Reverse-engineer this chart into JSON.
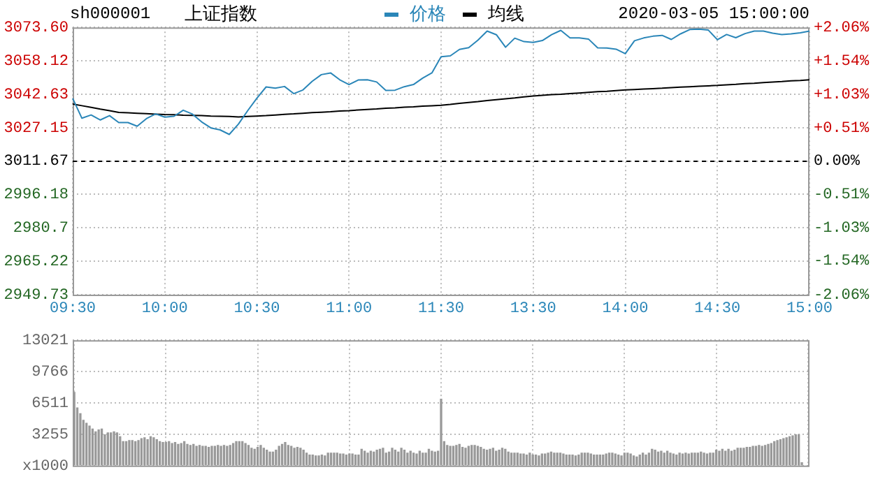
{
  "chart_data": [
    {
      "type": "line",
      "title": "上证指数",
      "subtitle": "sh000001",
      "annotations": [
        "2020-03-05 15:00:00"
      ],
      "legend": "top",
      "grid": true,
      "marker": "none",
      "categories": [
        "09:30",
        null,
        null,
        null,
        null,
        null,
        null,
        null,
        null,
        null,
        "10:00",
        null,
        null,
        null,
        null,
        null,
        null,
        null,
        null,
        null,
        "10:30",
        null,
        null,
        null,
        null,
        null,
        null,
        null,
        null,
        null,
        "11:00",
        null,
        null,
        null,
        null,
        null,
        null,
        null,
        null,
        null,
        "11:30",
        null,
        null,
        null,
        null,
        null,
        null,
        null,
        null,
        null,
        "13:30",
        null,
        null,
        null,
        null,
        null,
        null,
        null,
        null,
        null,
        "14:00",
        null,
        null,
        null,
        null,
        null,
        null,
        null,
        null,
        null,
        "14:30",
        null,
        null,
        null,
        null,
        null,
        null,
        null,
        null,
        null,
        "15:00"
      ],
      "ylim": [
        2949.73,
        3073.6
      ],
      "yticks": [
        2949.73,
        2965.22,
        2980.7,
        2996.18,
        3011.67,
        3027.15,
        3042.63,
        3058.12,
        {
          "value": 3073.6,
          "label": "3073.60"
        }
      ],
      "y2lim": [
        -2.06,
        2.06
      ],
      "y2ticks": [
        {
          "value": -2.06,
          "label": "-2.06%"
        },
        {
          "value": -1.54,
          "label": "-1.54%"
        },
        {
          "value": -1.03,
          "label": "-1.03%"
        },
        {
          "value": -0.51,
          "label": "-0.51%"
        },
        {
          "value": 0,
          "label": "0.00%"
        },
        {
          "value": 0.51,
          "label": "+0.51%"
        },
        {
          "value": 1.03,
          "label": "+1.03%"
        },
        {
          "value": 1.54,
          "label": "+1.54%"
        },
        {
          "value": 2.06,
          "label": "+2.06%"
        }
      ],
      "ref_lines": [
        {
          "axis": "y",
          "value": 3011.67,
          "color": "#000000",
          "line_style": "dashed"
        }
      ],
      "series": [
        {
          "name": "价格",
          "color": "#2a86b8",
          "values": [
            3040.7,
            3031.5,
            3033,
            3030.7,
            3032.7,
            3029.5,
            3029.5,
            3027.8,
            3031.3,
            3033.5,
            3032,
            3032.4,
            3035.2,
            3033.4,
            3029.8,
            3027,
            3026.1,
            3024,
            3028.8,
            3035,
            3040.8,
            3046,
            3045.4,
            3046.2,
            3042.9,
            3044.6,
            3048.6,
            3051.7,
            3052.5,
            3049.3,
            3047.1,
            3049.2,
            3049.3,
            3048.3,
            3044.4,
            3044.5,
            3046.1,
            3047.1,
            3050.1,
            3052.5,
            3060,
            3060.4,
            3063.4,
            3064.2,
            3067.7,
            3071.9,
            3070.2,
            3064.4,
            3068.6,
            3067,
            3066.6,
            3067.5,
            3070.2,
            3072.2,
            3068.7,
            3068.7,
            3068.2,
            3064.1,
            3064,
            3063.5,
            3061.4,
            3067.4,
            3068.7,
            3069.5,
            3069.9,
            3068,
            3070.6,
            3072.6,
            3072.8,
            3072.4,
            3067.9,
            3070.3,
            3068.8,
            3070.7,
            3071.9,
            3071.9,
            3070.9,
            3070.3,
            3070.6,
            3071.1,
            3071.9
          ]
        },
        {
          "name": "均线",
          "color": "#000000",
          "values": [
            3038.1,
            3037.3,
            3036.5,
            3035.7,
            3035,
            3034.2,
            3034,
            3033.8,
            3033.6,
            3033.4,
            3033.2,
            3033.1,
            3032.9,
            3032.8,
            3032.7,
            3032.5,
            3032.4,
            3032.3,
            3032.1,
            3032.3,
            3032.5,
            3032.7,
            3033,
            3033.3,
            3033.5,
            3033.8,
            3034.1,
            3034.3,
            3034.5,
            3034.8,
            3035,
            3035.3,
            3035.6,
            3035.8,
            3036.1,
            3036.3,
            3036.6,
            3036.8,
            3037.1,
            3037.3,
            3037.5,
            3037.9,
            3038.4,
            3038.8,
            3039.2,
            3039.7,
            3040.1,
            3040.5,
            3040.9,
            3041.4,
            3041.8,
            3042.1,
            3042.4,
            3042.6,
            3042.9,
            3043.2,
            3043.5,
            3043.8,
            3044,
            3044.3,
            3044.6,
            3044.8,
            3045,
            3045.2,
            3045.4,
            3045.7,
            3045.9,
            3046.1,
            3046.3,
            3046.5,
            3046.7,
            3047,
            3047.2,
            3047.5,
            3047.7,
            3048,
            3048.3,
            3048.5,
            3048.8,
            3049,
            3049.3
          ]
        }
      ]
    },
    {
      "type": "bar",
      "color": "#999999",
      "grid": true,
      "tick_labels": "y",
      "categories": [
        null,
        null,
        null,
        null,
        null,
        null,
        null,
        null,
        null,
        null,
        null,
        null,
        null,
        null,
        null,
        null,
        null,
        null,
        null,
        null,
        null,
        null,
        null,
        null,
        null,
        null,
        null,
        null,
        null,
        null,
        null,
        null,
        null,
        null,
        null,
        null,
        null,
        null,
        null,
        null,
        null,
        null,
        null,
        null,
        null,
        null,
        null,
        null,
        null,
        null,
        null,
        null,
        null,
        null,
        null,
        null,
        null,
        null,
        null,
        null,
        null,
        null,
        null,
        null,
        null,
        null,
        null,
        null,
        null,
        null,
        null,
        null,
        null,
        null,
        null,
        null,
        null,
        null,
        null,
        null,
        null,
        null,
        null,
        null,
        null,
        null,
        null,
        null,
        null,
        null,
        null,
        null,
        null,
        null,
        null,
        null,
        null,
        null,
        null,
        null,
        null,
        null,
        null,
        null,
        null,
        null,
        null,
        null,
        null,
        null,
        null,
        null,
        null,
        null,
        null,
        null,
        null,
        null,
        null,
        null,
        null,
        null,
        null,
        null,
        null,
        null,
        null,
        null,
        null,
        null,
        null,
        null,
        null,
        null,
        null,
        null,
        null,
        null,
        null,
        null,
        null,
        null,
        null,
        null,
        null,
        null,
        null,
        null,
        null,
        null,
        null,
        null,
        null,
        null,
        null,
        null,
        null,
        null,
        null,
        null,
        null,
        null,
        null,
        null,
        null,
        null,
        null,
        null,
        null,
        null,
        null,
        null,
        null,
        null,
        null,
        null,
        null,
        null,
        null,
        null,
        null,
        null,
        null,
        null,
        null,
        null,
        null,
        null,
        null,
        null,
        null,
        null,
        null,
        null,
        null,
        null,
        null,
        null,
        null,
        null,
        null,
        null,
        null,
        null,
        null,
        null,
        null,
        null,
        null,
        null,
        null,
        null,
        null,
        null,
        null,
        null,
        null,
        null,
        null,
        null,
        null,
        null,
        null,
        null,
        null,
        null,
        null,
        null,
        null,
        null,
        null,
        null,
        null,
        null,
        null,
        null,
        null,
        null,
        null,
        null,
        null
      ],
      "ylim": [
        0,
        13021
      ],
      "yticks": [
        {
          "value": 0,
          "label": "x1000"
        },
        3255,
        6511,
        9766,
        13021
      ],
      "values": [
        7600,
        6000,
        5400,
        4700,
        4400,
        4100,
        3800,
        3500,
        3700,
        3800,
        3200,
        3400,
        3400,
        3500,
        3400,
        3000,
        2500,
        2500,
        2600,
        2600,
        2500,
        2600,
        2800,
        2900,
        2700,
        3000,
        2900,
        2700,
        2500,
        2400,
        2400,
        2500,
        2300,
        2400,
        2200,
        2300,
        2500,
        2200,
        2100,
        2200,
        2000,
        2100,
        2000,
        2000,
        1900,
        2000,
        2000,
        2100,
        2000,
        2100,
        2000,
        2100,
        2300,
        2500,
        2500,
        2500,
        2300,
        2100,
        1800,
        1700,
        1900,
        2100,
        1800,
        1600,
        1400,
        1400,
        1600,
        2000,
        2200,
        2400,
        2100,
        2000,
        1800,
        1900,
        1800,
        1600,
        1300,
        1100,
        1100,
        1000,
        1000,
        1100,
        1000,
        1300,
        1300,
        1300,
        1300,
        1200,
        1200,
        1100,
        1200,
        1200,
        1100,
        1100,
        1700,
        1500,
        1300,
        1500,
        1400,
        1600,
        1700,
        1800,
        1300,
        1400,
        1800,
        1600,
        1400,
        1800,
        1600,
        1300,
        1500,
        1300,
        1200,
        1500,
        1300,
        1300,
        1700,
        1500,
        1400,
        1500,
        6900,
        2500,
        2100,
        2000,
        2000,
        2100,
        2200,
        1900,
        1800,
        2000,
        2100,
        2100,
        2000,
        1900,
        1700,
        1600,
        1700,
        1800,
        1500,
        1600,
        1800,
        1700,
        1400,
        1300,
        1300,
        1300,
        1200,
        1200,
        1100,
        1300,
        1100,
        1100,
        1000,
        1200,
        1200,
        1300,
        1400,
        1300,
        1300,
        1300,
        1200,
        1100,
        1100,
        1100,
        1000,
        1100,
        1300,
        1300,
        1300,
        1200,
        1100,
        1100,
        1100,
        1100,
        1200,
        1300,
        1300,
        1200,
        1100,
        1000,
        1300,
        1300,
        1200,
        1000,
        900,
        1100,
        1300,
        1100,
        1300,
        1700,
        1600,
        1400,
        1500,
        1300,
        1500,
        1300,
        1200,
        1100,
        1300,
        1200,
        1300,
        1200,
        1300,
        1300,
        1300,
        1400,
        1300,
        1200,
        1300,
        1300,
        1600,
        1500,
        1700,
        1500,
        1700,
        1500,
        1600,
        1800,
        1800,
        1800,
        1900,
        1900,
        2000,
        2000,
        2100,
        2000,
        2100,
        2200,
        2300,
        2500,
        2600,
        2700,
        2800,
        2900,
        3000,
        3100,
        3200,
        3200,
        300,
        null,
        null
      ]
    }
  ]
}
